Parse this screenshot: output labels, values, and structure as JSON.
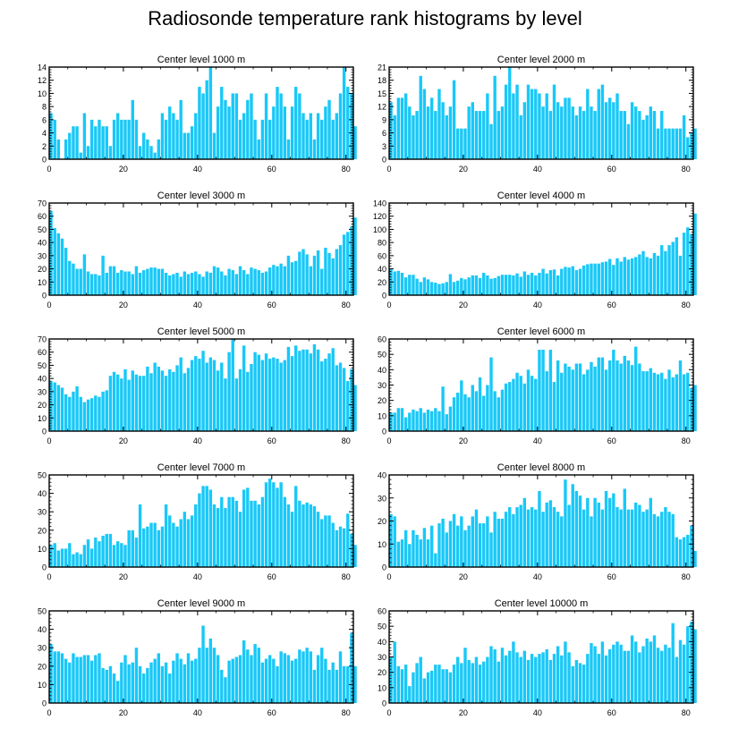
{
  "title": "Radiosonde temperature rank histograms by level",
  "colors": {
    "bar": "#18c8f8",
    "axis": "#000000"
  },
  "chart_data": [
    {
      "type": "bar",
      "title": "Center level 1000 m",
      "xlabel": "",
      "ylabel": "",
      "xlim": [
        0,
        82
      ],
      "ylim": [
        0,
        14
      ],
      "yticks": [
        0,
        2,
        4,
        6,
        8,
        10,
        12,
        14
      ],
      "xticks": [
        0,
        20,
        40,
        60,
        80
      ],
      "x_start": 0,
      "values": [
        7,
        6,
        3,
        0,
        3,
        4,
        5,
        5,
        1,
        7,
        2,
        6,
        5,
        6,
        5,
        5,
        2,
        6,
        7,
        6,
        6,
        6,
        9,
        6,
        2,
        4,
        3,
        2,
        1,
        3,
        7,
        6,
        8,
        7,
        6,
        9,
        4,
        4,
        5,
        7,
        11,
        10,
        12,
        14,
        4,
        8,
        11,
        9,
        8,
        10,
        10,
        6,
        7,
        9,
        10,
        6,
        3,
        6,
        10,
        6,
        8,
        11,
        10,
        8,
        3,
        8,
        11,
        10,
        7,
        6,
        7,
        3,
        7,
        6,
        8,
        9,
        6,
        7,
        10,
        14,
        11,
        10,
        5
      ]
    },
    {
      "type": "bar",
      "title": "Center level 2000 m",
      "xlabel": "",
      "ylabel": "",
      "xlim": [
        0,
        82
      ],
      "ylim": [
        0,
        21
      ],
      "yticks": [
        0,
        3,
        6,
        9,
        12,
        15,
        18,
        21
      ],
      "xticks": [
        0,
        20,
        40,
        60,
        80
      ],
      "x_start": 0,
      "values": [
        13,
        10,
        14,
        14,
        15,
        12,
        10,
        11,
        19,
        16,
        12,
        14,
        11,
        16,
        13,
        10,
        12,
        18,
        7,
        7,
        7,
        12,
        13,
        11,
        11,
        11,
        15,
        8,
        19,
        11,
        12,
        17,
        21,
        15,
        17,
        10,
        13,
        17,
        16,
        16,
        15,
        12,
        15,
        11,
        17,
        13,
        12,
        14,
        14,
        12,
        10,
        12,
        11,
        16,
        12,
        11,
        16,
        17,
        13,
        14,
        13,
        15,
        11,
        11,
        8,
        13,
        12,
        11,
        9,
        10,
        12,
        11,
        7,
        11,
        7,
        7,
        7,
        7,
        7,
        10,
        5,
        6,
        7
      ]
    },
    {
      "type": "bar",
      "title": "Center level 3000 m",
      "xlabel": "",
      "ylabel": "",
      "xlim": [
        0,
        82
      ],
      "ylim": [
        0,
        70
      ],
      "yticks": [
        0,
        10,
        20,
        30,
        40,
        50,
        60,
        70
      ],
      "xticks": [
        0,
        20,
        40,
        60,
        80
      ],
      "x_start": 0,
      "values": [
        64,
        51,
        47,
        43,
        36,
        26,
        24,
        20,
        20,
        31,
        18,
        16,
        16,
        15,
        30,
        17,
        22,
        22,
        17,
        19,
        18,
        18,
        16,
        22,
        17,
        19,
        20,
        21,
        21,
        20,
        20,
        17,
        15,
        16,
        17,
        14,
        18,
        16,
        17,
        18,
        16,
        14,
        18,
        17,
        22,
        21,
        18,
        15,
        20,
        19,
        16,
        22,
        19,
        16,
        21,
        20,
        19,
        17,
        18,
        21,
        23,
        22,
        24,
        22,
        30,
        25,
        26,
        33,
        35,
        31,
        22,
        30,
        34,
        20,
        36,
        32,
        28,
        35,
        38,
        46,
        48,
        52,
        59
      ]
    },
    {
      "type": "bar",
      "title": "Center level 4000 m",
      "xlabel": "",
      "ylabel": "",
      "xlim": [
        0,
        82
      ],
      "ylim": [
        0,
        140
      ],
      "yticks": [
        0,
        20,
        40,
        60,
        80,
        100,
        120,
        140
      ],
      "xticks": [
        0,
        20,
        40,
        60,
        80
      ],
      "x_start": 0,
      "values": [
        40,
        36,
        37,
        34,
        27,
        31,
        31,
        25,
        20,
        27,
        24,
        20,
        19,
        17,
        18,
        20,
        32,
        20,
        22,
        26,
        24,
        27,
        30,
        30,
        26,
        34,
        30,
        25,
        26,
        29,
        31,
        31,
        31,
        30,
        33,
        28,
        36,
        31,
        34,
        30,
        34,
        40,
        33,
        38,
        39,
        30,
        40,
        43,
        42,
        44,
        38,
        40,
        45,
        47,
        48,
        48,
        48,
        50,
        51,
        55,
        46,
        56,
        51,
        58,
        54,
        56,
        58,
        62,
        67,
        58,
        56,
        64,
        60,
        76,
        67,
        76,
        81,
        88,
        60,
        95,
        103,
        93,
        124
      ]
    },
    {
      "type": "bar",
      "title": "Center level 5000 m",
      "xlabel": "",
      "ylabel": "",
      "xlim": [
        0,
        82
      ],
      "ylim": [
        0,
        70
      ],
      "yticks": [
        0,
        10,
        20,
        30,
        40,
        50,
        60,
        70
      ],
      "xticks": [
        0,
        20,
        40,
        60,
        80
      ],
      "x_start": 0,
      "values": [
        38,
        37,
        35,
        33,
        28,
        26,
        30,
        34,
        26,
        22,
        24,
        25,
        27,
        26,
        30,
        31,
        42,
        45,
        43,
        40,
        47,
        39,
        46,
        43,
        42,
        42,
        49,
        44,
        52,
        49,
        46,
        42,
        47,
        45,
        50,
        56,
        44,
        48,
        54,
        57,
        55,
        61,
        52,
        56,
        54,
        46,
        52,
        40,
        60,
        70,
        40,
        47,
        65,
        45,
        51,
        60,
        58,
        54,
        59,
        55,
        56,
        55,
        52,
        54,
        64,
        57,
        65,
        61,
        62,
        62,
        59,
        66,
        62,
        53,
        55,
        59,
        63,
        50,
        52,
        48,
        38,
        47,
        35
      ]
    },
    {
      "type": "bar",
      "title": "Center level 6000 m",
      "xlabel": "",
      "ylabel": "",
      "xlim": [
        0,
        82
      ],
      "ylim": [
        0,
        60
      ],
      "yticks": [
        0,
        10,
        20,
        30,
        40,
        50,
        60
      ],
      "xticks": [
        0,
        20,
        40,
        60,
        80
      ],
      "x_start": 0,
      "values": [
        12,
        12,
        15,
        15,
        9,
        12,
        14,
        13,
        15,
        12,
        14,
        13,
        15,
        13,
        29,
        11,
        16,
        22,
        25,
        33,
        24,
        22,
        30,
        26,
        35,
        23,
        30,
        48,
        26,
        22,
        27,
        31,
        32,
        34,
        38,
        36,
        31,
        40,
        36,
        34,
        53,
        53,
        39,
        53,
        32,
        46,
        38,
        44,
        42,
        40,
        44,
        44,
        37,
        40,
        45,
        42,
        48,
        48,
        40,
        46,
        53,
        46,
        44,
        49,
        46,
        43,
        55,
        44,
        39,
        39,
        41,
        38,
        37,
        38,
        34,
        40,
        35,
        37,
        46,
        37,
        38,
        28,
        30
      ]
    },
    {
      "type": "bar",
      "title": "Center level 7000 m",
      "xlabel": "",
      "ylabel": "",
      "xlim": [
        0,
        82
      ],
      "ylim": [
        0,
        50
      ],
      "yticks": [
        0,
        10,
        20,
        30,
        40,
        50
      ],
      "xticks": [
        0,
        20,
        40,
        60,
        80
      ],
      "x_start": 0,
      "values": [
        12,
        13,
        9,
        10,
        10,
        13,
        7,
        8,
        7,
        12,
        15,
        10,
        16,
        14,
        17,
        18,
        18,
        12,
        14,
        13,
        12,
        20,
        20,
        16,
        34,
        21,
        22,
        24,
        24,
        20,
        22,
        34,
        28,
        24,
        22,
        26,
        30,
        26,
        28,
        34,
        40,
        44,
        44,
        42,
        34,
        32,
        38,
        32,
        38,
        38,
        36,
        30,
        42,
        43,
        36,
        36,
        34,
        38,
        46,
        48,
        46,
        43,
        46,
        38,
        34,
        30,
        44,
        36,
        34,
        35,
        34,
        33,
        30,
        26,
        28,
        28,
        24,
        20,
        22,
        21,
        29,
        18,
        12
      ]
    },
    {
      "type": "bar",
      "title": "Center level 8000 m",
      "xlabel": "",
      "ylabel": "",
      "xlim": [
        0,
        82
      ],
      "ylim": [
        0,
        40
      ],
      "yticks": [
        0,
        10,
        20,
        30,
        40
      ],
      "xticks": [
        0,
        20,
        40,
        60,
        80
      ],
      "x_start": 0,
      "values": [
        23,
        22,
        11,
        12,
        16,
        10,
        16,
        14,
        12,
        17,
        12,
        18,
        6,
        19,
        21,
        15,
        20,
        23,
        18,
        22,
        16,
        18,
        22,
        25,
        19,
        19,
        22,
        15,
        24,
        21,
        21,
        24,
        26,
        23,
        26,
        27,
        30,
        25,
        26,
        25,
        33,
        24,
        28,
        29,
        26,
        24,
        22,
        38,
        27,
        36,
        33,
        31,
        25,
        30,
        22,
        30,
        28,
        25,
        33,
        30,
        32,
        26,
        25,
        34,
        25,
        25,
        28,
        27,
        24,
        25,
        30,
        23,
        22,
        24,
        26,
        24,
        23,
        13,
        12,
        13,
        14,
        18,
        7
      ]
    },
    {
      "type": "bar",
      "title": "Center level 9000 m",
      "xlabel": "",
      "ylabel": "",
      "xlim": [
        0,
        82
      ],
      "ylim": [
        0,
        50
      ],
      "yticks": [
        0,
        10,
        20,
        30,
        40,
        50
      ],
      "xticks": [
        0,
        20,
        40,
        60,
        80
      ],
      "x_start": 0,
      "values": [
        32,
        28,
        28,
        27,
        24,
        22,
        27,
        25,
        25,
        26,
        26,
        23,
        26,
        27,
        19,
        18,
        20,
        16,
        12,
        22,
        26,
        21,
        22,
        30,
        20,
        16,
        19,
        22,
        24,
        27,
        20,
        22,
        16,
        23,
        27,
        24,
        21,
        27,
        23,
        24,
        30,
        42,
        30,
        35,
        30,
        26,
        18,
        14,
        23,
        24,
        25,
        26,
        34,
        29,
        26,
        32,
        30,
        22,
        24,
        26,
        24,
        20,
        28,
        27,
        26,
        23,
        24,
        29,
        28,
        30,
        28,
        18,
        26,
        30,
        24,
        18,
        22,
        18,
        28,
        20,
        20,
        38,
        20
      ]
    },
    {
      "type": "bar",
      "title": "Center level 10000 m",
      "xlabel": "",
      "ylabel": "",
      "xlim": [
        0,
        82
      ],
      "ylim": [
        0,
        60
      ],
      "yticks": [
        0,
        10,
        20,
        30,
        40,
        50,
        60
      ],
      "xticks": [
        0,
        20,
        40,
        60,
        80
      ],
      "x_start": 0,
      "values": [
        30,
        40,
        24,
        22,
        25,
        11,
        20,
        26,
        30,
        16,
        20,
        21,
        25,
        25,
        22,
        22,
        20,
        25,
        30,
        26,
        36,
        28,
        26,
        30,
        25,
        27,
        30,
        37,
        35,
        27,
        36,
        31,
        34,
        40,
        33,
        30,
        34,
        28,
        32,
        30,
        32,
        33,
        35,
        28,
        32,
        37,
        31,
        40,
        33,
        24,
        28,
        26,
        25,
        32,
        39,
        37,
        32,
        40,
        31,
        35,
        38,
        40,
        38,
        34,
        34,
        44,
        40,
        33,
        37,
        42,
        40,
        44,
        36,
        34,
        38,
        36,
        52,
        30,
        41,
        38,
        50,
        53,
        48
      ]
    }
  ]
}
